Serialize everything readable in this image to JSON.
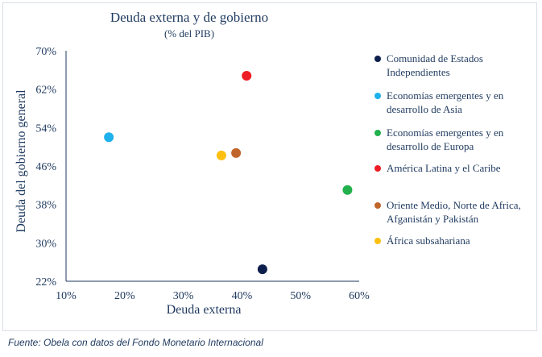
{
  "chart_data": {
    "type": "scatter",
    "title": "Deuda externa y de gobierno",
    "subtitle": "(% del PIB)",
    "xlabel": "Deuda externa",
    "ylabel": "Deuda del gobierno general",
    "xlim": [
      10,
      60
    ],
    "ylim": [
      22,
      70
    ],
    "x_ticks": [
      "10%",
      "20%",
      "30%",
      "40%",
      "50%",
      "60%"
    ],
    "y_ticks": [
      "22%",
      "30%",
      "38%",
      "46%",
      "54%",
      "62%",
      "70%"
    ],
    "grid": false,
    "legend_position": "right",
    "series": [
      {
        "name": "Comunidad de Estados Independientes",
        "color": "#0d1f4c",
        "x": 43.5,
        "y": 24.5
      },
      {
        "name": "Economías emergentes y en desarrollo de Asia",
        "color": "#1fb1ec",
        "x": 17.3,
        "y": 52.0
      },
      {
        "name": "Economías emergentes y en desarrollo de Europa",
        "color": "#22b14c",
        "x": 58.0,
        "y": 41.0
      },
      {
        "name": "América Latina y el Caribe",
        "color": "#ee1c24",
        "x": 40.8,
        "y": 64.8
      },
      {
        "name": "Oriente Medio, Norte de Africa, Afganistán y Pakistán",
        "color": "#c0652a",
        "x": 39.0,
        "y": 48.7
      },
      {
        "name": "África subsahariana",
        "color": "#fdc010",
        "x": 36.5,
        "y": 48.2
      }
    ]
  },
  "source": "Fuente: Obela con datos del Fondo Monetario Internacional"
}
